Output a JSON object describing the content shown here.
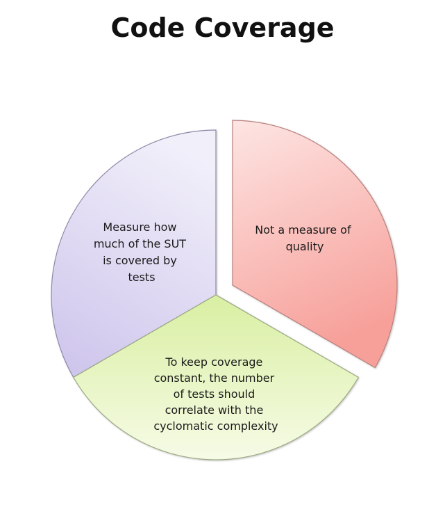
{
  "title": "Code Coverage",
  "segments": [
    {
      "id": "quality",
      "color": "#f7a9a3",
      "lines": [
        "Not a measure of",
        "quality"
      ]
    },
    {
      "id": "constant",
      "color": "#e6f4b8",
      "lines": [
        "To keep coverage",
        "constant, the number",
        "of tests should",
        "correlate with the",
        "cyclomatic complexity"
      ]
    },
    {
      "id": "sut",
      "color": "#d6d1ef",
      "lines": [
        "Measure how",
        "much of the SUT",
        "is covered by",
        "tests"
      ]
    }
  ]
}
